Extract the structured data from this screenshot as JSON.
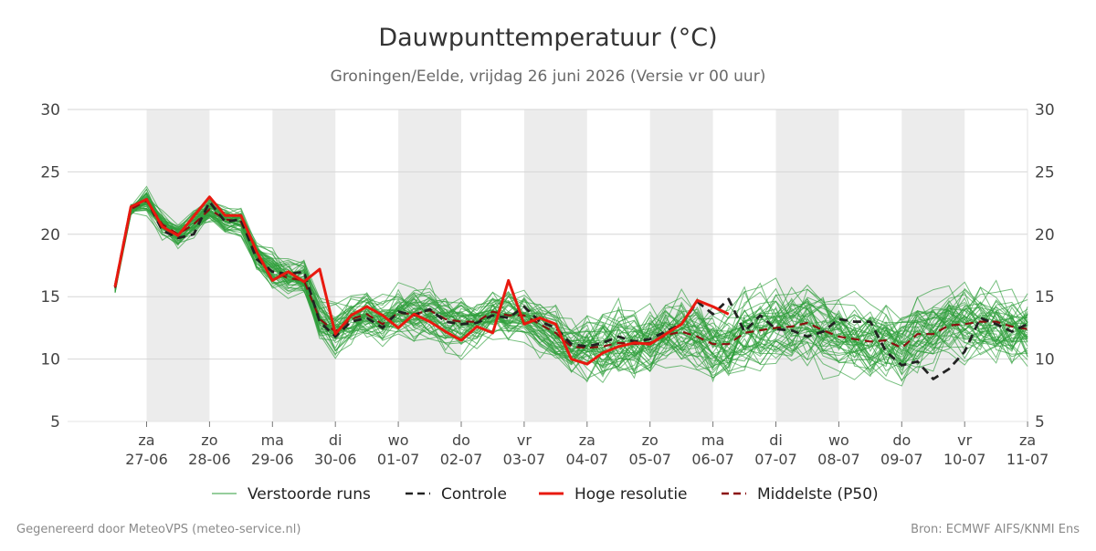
{
  "chart_data": {
    "type": "line",
    "title": "Dauwpunttemperatuur (°C)",
    "subtitle": "Groningen/Eelde, vrijdag 26 juni 2026 (Versie vr 00 uur)",
    "ylim": [
      5,
      30
    ],
    "yticks": [
      5,
      10,
      15,
      20,
      25,
      30
    ],
    "grid": true,
    "legend_position": "bottom",
    "x_range": [
      0,
      15
    ],
    "x_ticks": [
      {
        "x": 1,
        "day": "za",
        "date": "27-06"
      },
      {
        "x": 2,
        "day": "zo",
        "date": "28-06"
      },
      {
        "x": 3,
        "day": "ma",
        "date": "29-06"
      },
      {
        "x": 4,
        "day": "di",
        "date": "30-06"
      },
      {
        "x": 5,
        "day": "wo",
        "date": "01-07"
      },
      {
        "x": 6,
        "day": "do",
        "date": "02-07"
      },
      {
        "x": 7,
        "day": "vr",
        "date": "03-07"
      },
      {
        "x": 8,
        "day": "za",
        "date": "04-07"
      },
      {
        "x": 9,
        "day": "zo",
        "date": "05-07"
      },
      {
        "x": 10,
        "day": "ma",
        "date": "06-07"
      },
      {
        "x": 11,
        "day": "di",
        "date": "07-07"
      },
      {
        "x": 12,
        "day": "wo",
        "date": "08-07"
      },
      {
        "x": 13,
        "day": "do",
        "date": "09-07"
      },
      {
        "x": 14,
        "day": "vr",
        "date": "10-07"
      },
      {
        "x": 15,
        "day": "za",
        "date": "11-07"
      }
    ],
    "shaded_bands": [
      [
        1,
        2
      ],
      [
        3,
        4
      ],
      [
        5,
        6
      ],
      [
        7,
        8
      ],
      [
        9,
        10
      ],
      [
        11,
        12
      ],
      [
        13,
        14
      ]
    ],
    "series": [
      {
        "name": "Controle",
        "color": "#222222",
        "style": "dashed",
        "points": [
          [
            0.5,
            15.8
          ],
          [
            0.75,
            22.2
          ],
          [
            1.0,
            22.8
          ],
          [
            1.25,
            20.3
          ],
          [
            1.5,
            19.7
          ],
          [
            1.75,
            20.0
          ],
          [
            2.0,
            22.6
          ],
          [
            2.25,
            21.0
          ],
          [
            2.5,
            21.2
          ],
          [
            2.75,
            18.0
          ],
          [
            3.0,
            17.0
          ],
          [
            3.25,
            16.8
          ],
          [
            3.5,
            17.0
          ],
          [
            3.75,
            13.0
          ],
          [
            4.0,
            11.8
          ],
          [
            4.25,
            13.0
          ],
          [
            4.5,
            13.3
          ],
          [
            4.75,
            12.5
          ],
          [
            5.0,
            13.8
          ],
          [
            5.25,
            13.5
          ],
          [
            5.5,
            14.0
          ],
          [
            5.75,
            13.0
          ],
          [
            6.0,
            12.8
          ],
          [
            6.25,
            12.9
          ],
          [
            6.5,
            13.5
          ],
          [
            6.75,
            13.3
          ],
          [
            7.0,
            14.2
          ],
          [
            7.25,
            13.0
          ],
          [
            7.5,
            12.5
          ],
          [
            7.75,
            11.2
          ],
          [
            8.0,
            11.0
          ],
          [
            8.25,
            11.3
          ],
          [
            8.5,
            11.8
          ],
          [
            8.75,
            11.4
          ],
          [
            9.0,
            11.6
          ],
          [
            9.25,
            12.2
          ],
          [
            9.5,
            12.8
          ],
          [
            9.75,
            14.6
          ],
          [
            10.0,
            13.6
          ],
          [
            10.25,
            14.8
          ],
          [
            10.5,
            12.2
          ],
          [
            10.75,
            13.5
          ],
          [
            11.0,
            12.4
          ],
          [
            11.25,
            12.3
          ],
          [
            11.5,
            11.8
          ],
          [
            11.75,
            12.2
          ],
          [
            12.0,
            13.2
          ],
          [
            12.25,
            13.0
          ],
          [
            12.5,
            13.0
          ],
          [
            12.75,
            10.6
          ],
          [
            13.0,
            9.5
          ],
          [
            13.25,
            9.8
          ],
          [
            13.5,
            8.4
          ],
          [
            13.75,
            9.2
          ],
          [
            14.0,
            10.6
          ],
          [
            14.25,
            13.3
          ],
          [
            14.5,
            12.8
          ],
          [
            14.75,
            12.2
          ],
          [
            15.0,
            12.8
          ]
        ]
      },
      {
        "name": "Hoge resolutie",
        "color": "#e8190f",
        "style": "solid",
        "points": [
          [
            0.5,
            15.8
          ],
          [
            0.75,
            22.2
          ],
          [
            1.0,
            22.8
          ],
          [
            1.25,
            20.6
          ],
          [
            1.5,
            19.9
          ],
          [
            2.0,
            23.0
          ],
          [
            2.25,
            21.5
          ],
          [
            2.5,
            21.5
          ],
          [
            2.75,
            18.6
          ],
          [
            3.0,
            16.3
          ],
          [
            3.25,
            17.0
          ],
          [
            3.5,
            16.2
          ],
          [
            3.75,
            17.2
          ],
          [
            4.0,
            12.0
          ],
          [
            4.25,
            13.5
          ],
          [
            4.5,
            14.2
          ],
          [
            4.75,
            13.5
          ],
          [
            5.0,
            12.5
          ],
          [
            5.25,
            13.6
          ],
          [
            5.5,
            13.0
          ],
          [
            5.75,
            12.2
          ],
          [
            6.0,
            11.5
          ],
          [
            6.25,
            12.6
          ],
          [
            6.5,
            12.1
          ],
          [
            6.75,
            16.3
          ],
          [
            7.0,
            12.8
          ],
          [
            7.25,
            13.3
          ],
          [
            7.5,
            12.8
          ],
          [
            7.75,
            10.0
          ],
          [
            8.0,
            9.6
          ],
          [
            8.25,
            10.5
          ],
          [
            8.5,
            11.0
          ],
          [
            8.75,
            11.3
          ],
          [
            9.0,
            11.2
          ],
          [
            9.25,
            12.0
          ],
          [
            9.5,
            12.8
          ],
          [
            9.75,
            14.7
          ],
          [
            10.0,
            14.2
          ],
          [
            10.25,
            13.6
          ]
        ]
      },
      {
        "name": "Middelste (P50)",
        "color": "#8b0f0f",
        "style": "dashed",
        "points": [
          [
            0.5,
            15.7
          ],
          [
            0.75,
            22.0
          ],
          [
            1.0,
            22.7
          ],
          [
            1.25,
            20.8
          ],
          [
            1.5,
            20.0
          ],
          [
            1.75,
            20.8
          ],
          [
            2.0,
            22.0
          ],
          [
            2.25,
            21.2
          ],
          [
            2.5,
            21.0
          ],
          [
            2.75,
            18.2
          ],
          [
            3.0,
            17.0
          ],
          [
            3.25,
            16.5
          ],
          [
            3.5,
            16.3
          ],
          [
            3.75,
            13.2
          ],
          [
            4.0,
            12.2
          ],
          [
            4.25,
            13.2
          ],
          [
            4.5,
            13.6
          ],
          [
            4.75,
            12.8
          ],
          [
            5.0,
            13.7
          ],
          [
            5.25,
            13.6
          ],
          [
            5.5,
            13.9
          ],
          [
            5.75,
            13.2
          ],
          [
            6.0,
            13.0
          ],
          [
            6.25,
            13.0
          ],
          [
            6.5,
            13.8
          ],
          [
            6.75,
            13.5
          ],
          [
            7.0,
            13.5
          ],
          [
            7.25,
            12.8
          ],
          [
            7.5,
            12.1
          ],
          [
            7.75,
            11.0
          ],
          [
            8.0,
            10.9
          ],
          [
            8.25,
            11.0
          ],
          [
            8.5,
            11.3
          ],
          [
            8.75,
            11.2
          ],
          [
            9.0,
            11.3
          ],
          [
            9.25,
            11.9
          ],
          [
            9.5,
            12.2
          ],
          [
            9.75,
            11.8
          ],
          [
            10.0,
            11.2
          ],
          [
            10.25,
            11.2
          ],
          [
            10.5,
            12.1
          ],
          [
            10.75,
            12.3
          ],
          [
            11.0,
            12.5
          ],
          [
            11.25,
            12.6
          ],
          [
            11.5,
            12.9
          ],
          [
            11.75,
            12.3
          ],
          [
            12.0,
            11.8
          ],
          [
            12.25,
            11.6
          ],
          [
            12.5,
            11.4
          ],
          [
            12.75,
            11.5
          ],
          [
            13.0,
            10.9
          ],
          [
            13.25,
            12.0
          ],
          [
            13.5,
            12.0
          ],
          [
            13.75,
            12.7
          ],
          [
            14.0,
            12.8
          ],
          [
            14.25,
            13.0
          ],
          [
            14.5,
            13.0
          ],
          [
            14.75,
            12.6
          ],
          [
            15.0,
            12.4
          ]
        ]
      }
    ],
    "ensemble": {
      "name": "Verstoorde runs",
      "color": "#2e9e3a",
      "members": 50
    }
  },
  "legend": {
    "items": [
      {
        "label": "Verstoorde runs",
        "color": "#2e9e3a",
        "style": "thin"
      },
      {
        "label": "Controle",
        "color": "#222222",
        "style": "dashed"
      },
      {
        "label": "Hoge resolutie",
        "color": "#e8190f",
        "style": "solid"
      },
      {
        "label": "Middelste (P50)",
        "color": "#8b0f0f",
        "style": "dashed"
      }
    ]
  },
  "footer": {
    "left": "Gegenereerd door MeteoVPS (meteo-service.nl)",
    "right": "Bron: ECMWF AIFS/KNMI Ens"
  }
}
